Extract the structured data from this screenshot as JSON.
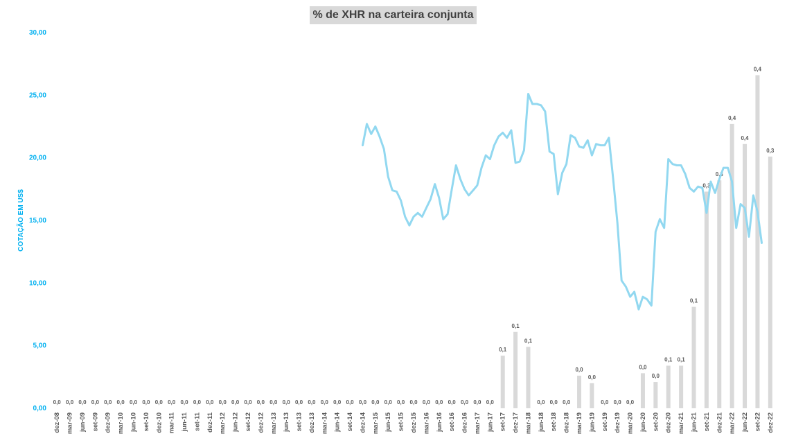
{
  "chart_data": {
    "type": "bar+line",
    "title": "% de XHR na carteira conjunta",
    "ylabel": "COTAÇÃO EM US$",
    "ylim": [
      0,
      30
    ],
    "yticks": [
      "0,00",
      "5,00",
      "10,00",
      "15,00",
      "20,00",
      "25,00",
      "30,00"
    ],
    "categories": [
      "dez-08",
      "mar-09",
      "jun-09",
      "set-09",
      "dez-09",
      "mar-10",
      "jun-10",
      "set-10",
      "dez-10",
      "mar-11",
      "jun-11",
      "set-11",
      "dez-11",
      "mar-12",
      "jun-12",
      "set-12",
      "dez-12",
      "mar-13",
      "jun-13",
      "set-13",
      "dez-13",
      "mar-14",
      "jun-14",
      "set-14",
      "dez-14",
      "mar-15",
      "jun-15",
      "set-15",
      "dez-15",
      "mar-16",
      "jun-16",
      "set-16",
      "dez-16",
      "mar-17",
      "jun-17",
      "set-17",
      "dez-17",
      "mar-18",
      "jun-18",
      "set-18",
      "dez-18",
      "mar-19",
      "jun-19",
      "set-19",
      "dez-19",
      "mar-20",
      "jun-20",
      "set-20",
      "dez-20",
      "mar-21",
      "jun-21",
      "set-21",
      "dez-21",
      "mar-22",
      "jun-22",
      "set-22",
      "dez-22"
    ],
    "bars": {
      "values": [
        0,
        0,
        0,
        0,
        0,
        0,
        0,
        0,
        0,
        0,
        0,
        0,
        0,
        0,
        0,
        0,
        0,
        0,
        0,
        0,
        0,
        0,
        0,
        0,
        0,
        0,
        0,
        0,
        0,
        0,
        0,
        0,
        0,
        0,
        0,
        4.2,
        6.1,
        4.9,
        0,
        0,
        0,
        2.6,
        2.0,
        0,
        0,
        0,
        2.8,
        2.1,
        3.4,
        3.4,
        8.1,
        17.3,
        18.2,
        22.7,
        21.1,
        26.6,
        20.1
      ],
      "labels": [
        "0,0",
        "0,0",
        "0,0",
        "0,0",
        "0,0",
        "0,0",
        "0,0",
        "0,0",
        "0,0",
        "0,0",
        "0,0",
        "0,0",
        "0,0",
        "0,0",
        "0,0",
        "0,0",
        "0,0",
        "0,0",
        "0,0",
        "0,0",
        "0,0",
        "0,0",
        "0,0",
        "0,0",
        "0,0",
        "0,0",
        "0,0",
        "0,0",
        "0,0",
        "0,0",
        "0,0",
        "0,0",
        "0,0",
        "0,0",
        "0,0",
        "0,1",
        "0,1",
        "0,1",
        "0,0",
        "0,0",
        "0,0",
        "0,0",
        "0,0",
        "0,0",
        "0,0",
        "0,0",
        "0,0",
        "0,0",
        "0,1",
        "0,1",
        "0,1",
        "0,3",
        "0,3",
        "0,4",
        "0,4",
        "0,4",
        "0,3"
      ],
      "color": "#d9d9d9"
    },
    "line": {
      "color": "#92d8f0",
      "points": [
        [
          24.0,
          21.0
        ],
        [
          24.33,
          22.7
        ],
        [
          24.67,
          21.9
        ],
        [
          25.0,
          22.5
        ],
        [
          25.33,
          21.7
        ],
        [
          25.67,
          20.7
        ],
        [
          26.0,
          18.5
        ],
        [
          26.33,
          17.4
        ],
        [
          26.67,
          17.3
        ],
        [
          27.0,
          16.6
        ],
        [
          27.33,
          15.3
        ],
        [
          27.67,
          14.6
        ],
        [
          28.0,
          15.3
        ],
        [
          28.33,
          15.6
        ],
        [
          28.67,
          15.3
        ],
        [
          29.0,
          16.0
        ],
        [
          29.33,
          16.7
        ],
        [
          29.67,
          17.9
        ],
        [
          30.0,
          16.8
        ],
        [
          30.33,
          15.1
        ],
        [
          30.67,
          15.5
        ],
        [
          31.0,
          17.5
        ],
        [
          31.33,
          19.4
        ],
        [
          31.67,
          18.3
        ],
        [
          32.0,
          17.5
        ],
        [
          32.33,
          17.0
        ],
        [
          32.67,
          17.4
        ],
        [
          33.0,
          17.8
        ],
        [
          33.33,
          19.2
        ],
        [
          33.67,
          20.2
        ],
        [
          34.0,
          19.9
        ],
        [
          34.33,
          21.0
        ],
        [
          34.67,
          21.7
        ],
        [
          35.0,
          22.0
        ],
        [
          35.33,
          21.6
        ],
        [
          35.67,
          22.2
        ],
        [
          36.0,
          19.6
        ],
        [
          36.33,
          19.7
        ],
        [
          36.67,
          20.6
        ],
        [
          37.0,
          25.1
        ],
        [
          37.33,
          24.3
        ],
        [
          37.67,
          24.3
        ],
        [
          38.0,
          24.2
        ],
        [
          38.33,
          23.7
        ],
        [
          38.67,
          20.5
        ],
        [
          39.0,
          20.3
        ],
        [
          39.33,
          17.1
        ],
        [
          39.67,
          18.8
        ],
        [
          40.0,
          19.5
        ],
        [
          40.33,
          21.8
        ],
        [
          40.67,
          21.6
        ],
        [
          41.0,
          20.9
        ],
        [
          41.33,
          20.8
        ],
        [
          41.67,
          21.4
        ],
        [
          42.0,
          20.2
        ],
        [
          42.33,
          21.1
        ],
        [
          42.67,
          21.0
        ],
        [
          43.0,
          21.0
        ],
        [
          43.33,
          21.6
        ],
        [
          43.67,
          18.3
        ],
        [
          44.0,
          14.8
        ],
        [
          44.33,
          10.2
        ],
        [
          44.67,
          9.7
        ],
        [
          45.0,
          8.9
        ],
        [
          45.33,
          9.3
        ],
        [
          45.67,
          7.9
        ],
        [
          46.0,
          8.9
        ],
        [
          46.33,
          8.7
        ],
        [
          46.67,
          8.2
        ],
        [
          47.0,
          14.1
        ],
        [
          47.33,
          15.1
        ],
        [
          47.67,
          14.4
        ],
        [
          48.0,
          19.9
        ],
        [
          48.33,
          19.5
        ],
        [
          48.67,
          19.4
        ],
        [
          49.0,
          19.4
        ],
        [
          49.33,
          18.7
        ],
        [
          49.67,
          17.6
        ],
        [
          50.0,
          17.3
        ],
        [
          50.33,
          17.7
        ],
        [
          50.67,
          17.6
        ],
        [
          51.0,
          15.6
        ],
        [
          51.33,
          18.1
        ],
        [
          51.67,
          17.2
        ],
        [
          52.0,
          18.3
        ],
        [
          52.33,
          19.2
        ],
        [
          52.67,
          19.2
        ],
        [
          53.0,
          18.1
        ],
        [
          53.33,
          14.4
        ],
        [
          53.67,
          16.3
        ],
        [
          54.0,
          16.0
        ],
        [
          54.33,
          13.7
        ],
        [
          54.67,
          17.0
        ],
        [
          55.0,
          15.7
        ],
        [
          55.33,
          13.2
        ]
      ]
    }
  }
}
